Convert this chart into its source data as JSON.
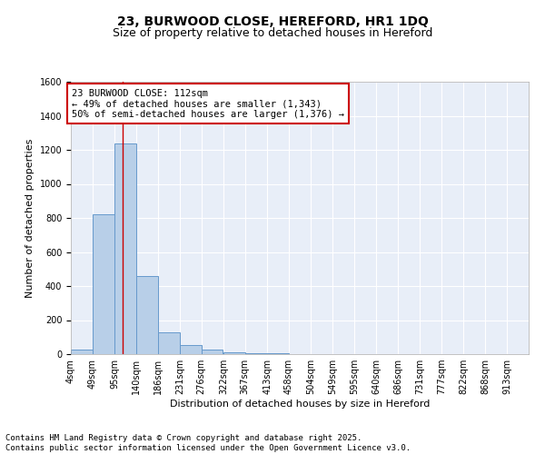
{
  "title_line1": "23, BURWOOD CLOSE, HEREFORD, HR1 1DQ",
  "title_line2": "Size of property relative to detached houses in Hereford",
  "xlabel": "Distribution of detached houses by size in Hereford",
  "ylabel": "Number of detached properties",
  "bin_labels": [
    "4sqm",
    "49sqm",
    "95sqm",
    "140sqm",
    "186sqm",
    "231sqm",
    "276sqm",
    "322sqm",
    "367sqm",
    "413sqm",
    "458sqm",
    "504sqm",
    "549sqm",
    "595sqm",
    "640sqm",
    "686sqm",
    "731sqm",
    "777sqm",
    "822sqm",
    "868sqm",
    "913sqm"
  ],
  "bin_edges": [
    4,
    49,
    95,
    140,
    186,
    231,
    276,
    322,
    367,
    413,
    458,
    504,
    549,
    595,
    640,
    686,
    731,
    777,
    822,
    868,
    913
  ],
  "bar_heights": [
    25,
    820,
    1240,
    460,
    130,
    55,
    28,
    12,
    8,
    5,
    0,
    0,
    0,
    0,
    0,
    0,
    0,
    0,
    0,
    0
  ],
  "bar_color": "#b8cfe8",
  "bar_edge_color": "#6699cc",
  "vline_x": 112,
  "vline_color": "#cc0000",
  "ylim": [
    0,
    1600
  ],
  "yticks": [
    0,
    200,
    400,
    600,
    800,
    1000,
    1200,
    1400,
    1600
  ],
  "annotation_text": "23 BURWOOD CLOSE: 112sqm\n← 49% of detached houses are smaller (1,343)\n50% of semi-detached houses are larger (1,376) →",
  "annotation_box_color": "#ffffff",
  "annotation_box_edge_color": "#cc0000",
  "footer_line1": "Contains HM Land Registry data © Crown copyright and database right 2025.",
  "footer_line2": "Contains public sector information licensed under the Open Government Licence v3.0.",
  "bg_color": "#e8eef8",
  "grid_color": "#ffffff",
  "title_fontsize": 10,
  "subtitle_fontsize": 9,
  "axis_label_fontsize": 8,
  "tick_fontsize": 7,
  "annotation_fontsize": 7.5,
  "footer_fontsize": 6.5
}
